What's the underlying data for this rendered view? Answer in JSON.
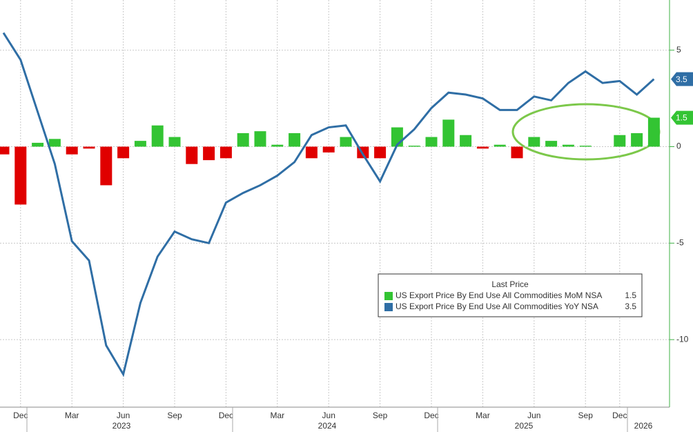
{
  "chart_data": {
    "type": "bar_line",
    "categories": [
      null,
      "Dec",
      null,
      null,
      "Mar",
      null,
      null,
      "Jun",
      null,
      null,
      "Sep",
      null,
      null,
      "Dec",
      null,
      null,
      "Mar",
      null,
      null,
      "Jun",
      null,
      null,
      "Sep",
      null,
      null,
      "Dec",
      null,
      null,
      "Mar",
      null,
      null,
      "Jun",
      null,
      null,
      "Sep",
      null,
      "Dec",
      null,
      null
    ],
    "years": [
      "2023",
      "2024",
      "2025",
      "2026"
    ],
    "series": [
      {
        "name": "US Export Price By End Use All Commodities MoM NSA",
        "type": "bar",
        "color": "#33c433",
        "negative_color": "#e00000",
        "values": [
          -0.4,
          -3.0,
          0.2,
          0.4,
          -0.4,
          -0.1,
          -2.0,
          -0.6,
          0.3,
          1.1,
          0.5,
          -0.9,
          -0.7,
          -0.6,
          0.7,
          0.8,
          0.1,
          0.7,
          -0.6,
          -0.3,
          0.5,
          -0.6,
          -0.6,
          1.0,
          0.05,
          0.5,
          1.4,
          0.6,
          -0.1,
          0.1,
          -0.6,
          0.5,
          0.3,
          0.1,
          0.05,
          0,
          0.6,
          0.7,
          1.5
        ]
      },
      {
        "name": "US Export Price By End Use All Commodities YoY NSA",
        "type": "line",
        "color": "#2f6ea5",
        "values": [
          5.9,
          4.5,
          1.8,
          -0.9,
          -4.9,
          -5.9,
          -10.3,
          -11.8,
          -8.1,
          -5.7,
          -4.4,
          -4.8,
          -5.0,
          -2.9,
          -2.4,
          -2.0,
          -1.5,
          -0.8,
          0.6,
          1.0,
          1.1,
          -0.4,
          -1.8,
          0.1,
          0.9,
          2.0,
          2.8,
          2.7,
          2.5,
          1.9,
          1.9,
          2.6,
          2.4,
          3.3,
          3.9,
          3.3,
          3.4,
          2.7,
          3.5
        ]
      }
    ],
    "legend_title": "Last Price",
    "ylim": [
      -13.5,
      7.6
    ],
    "yticks": [
      5,
      0,
      -5,
      -10
    ],
    "grid": true
  }
}
